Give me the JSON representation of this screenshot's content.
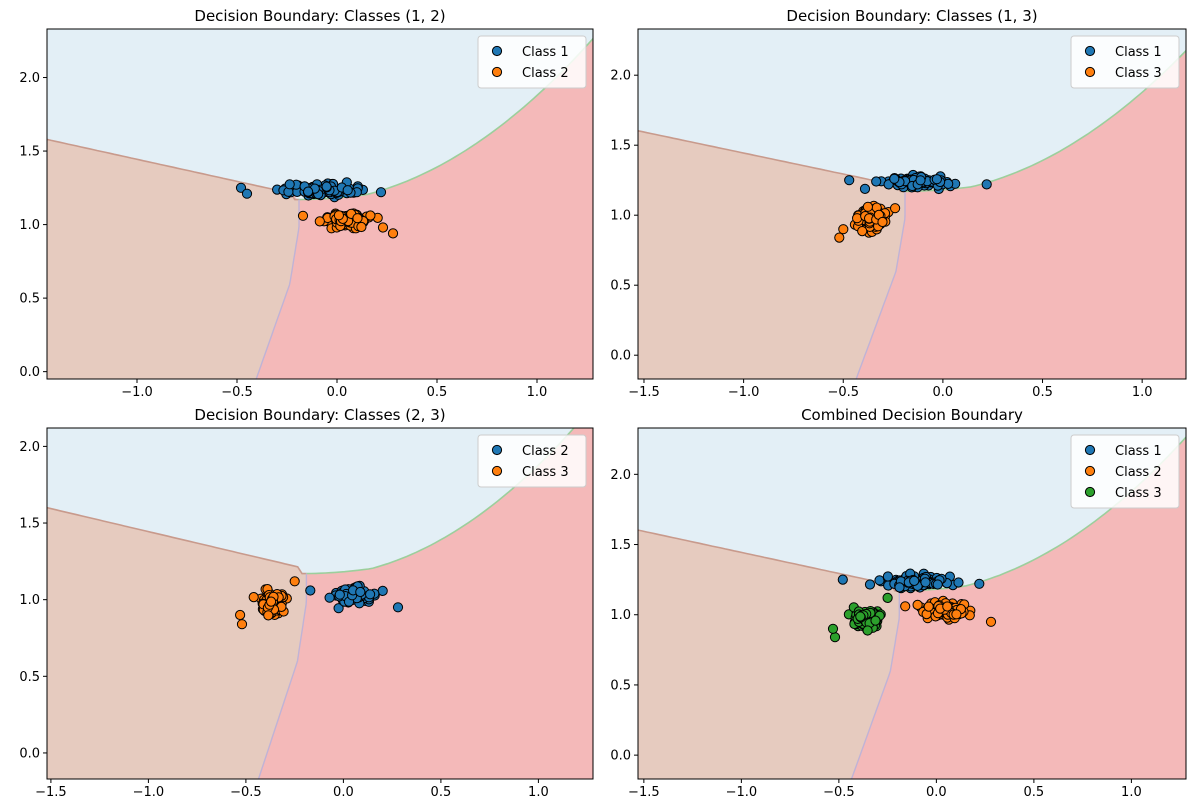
{
  "colors": {
    "class_1": "#1f77b4",
    "class_2": "#ff7f0e",
    "class_3": "#2ca02c",
    "region_top": "#e3eff6",
    "region_left": "#e6cbbf",
    "region_right": "#f4b9b9"
  },
  "chart_data": [
    {
      "type": "scatter",
      "title": "Decision Boundary: Classes (1, 2)",
      "xlabel": "",
      "ylabel": "",
      "xlim": [
        -1.45,
        1.28
      ],
      "ylim": [
        -0.05,
        2.33
      ],
      "xticks": [
        -1.0,
        -0.5,
        0.0,
        0.5,
        1.0
      ],
      "xtick_labels": [
        "−1.0",
        "−0.5",
        "0.0",
        "0.5",
        "1.0"
      ],
      "yticks": [
        0.0,
        0.5,
        1.0,
        1.5,
        2.0
      ],
      "ytick_labels": [
        "0.0",
        "0.5",
        "1.0",
        "1.5",
        "2.0"
      ],
      "grid": false,
      "legend_position": "top-right",
      "background": "decision-regions",
      "series": [
        {
          "name": "Class 1",
          "color": "#1f77b4",
          "center": [
            -0.1,
            1.235
          ],
          "spread": [
            0.16,
            0.028
          ],
          "n": 120,
          "outliers": [
            [
              0.22,
              1.22
            ],
            [
              -0.48,
              1.25
            ],
            [
              -0.45,
              1.21
            ]
          ]
        },
        {
          "name": "Class 2",
          "color": "#ff7f0e",
          "center": [
            0.05,
            1.03
          ],
          "spread": [
            0.09,
            0.035
          ],
          "n": 110,
          "outliers": [
            [
              0.28,
              0.94
            ],
            [
              -0.17,
              1.06
            ],
            [
              0.23,
              0.98
            ]
          ]
        }
      ]
    },
    {
      "type": "scatter",
      "title": "Decision Boundary: Classes (1, 3)",
      "xlabel": "",
      "ylabel": "",
      "xlim": [
        -1.53,
        1.22
      ],
      "ylim": [
        -0.17,
        2.33
      ],
      "xticks": [
        -1.5,
        -1.0,
        -0.5,
        0.0,
        0.5,
        1.0
      ],
      "xtick_labels": [
        "−1.5",
        "−1.0",
        "−0.5",
        "0.0",
        "0.5",
        "1.0"
      ],
      "yticks": [
        0.0,
        0.5,
        1.0,
        1.5,
        2.0
      ],
      "ytick_labels": [
        "0.0",
        "0.5",
        "1.0",
        "1.5",
        "2.0"
      ],
      "grid": false,
      "legend_position": "top-right",
      "background": "decision-regions",
      "series": [
        {
          "name": "Class 1",
          "color": "#1f77b4",
          "center": [
            -0.14,
            1.235
          ],
          "spread": [
            0.14,
            0.025
          ],
          "n": 120,
          "outliers": [
            [
              0.22,
              1.22
            ],
            [
              -0.47,
              1.25
            ]
          ]
        },
        {
          "name": "Class 3",
          "color": "#ff7f0e",
          "center": [
            -0.36,
            0.97
          ],
          "spread": [
            0.06,
            0.05
          ],
          "n": 110,
          "outliers": [
            [
              -0.52,
              0.84
            ],
            [
              -0.5,
              0.9
            ],
            [
              -0.24,
              1.05
            ]
          ]
        }
      ]
    },
    {
      "type": "scatter",
      "title": "Decision Boundary: Classes (2, 3)",
      "xlabel": "",
      "ylabel": "",
      "xlim": [
        -1.52,
        1.28
      ],
      "ylim": [
        -0.17,
        2.12
      ],
      "xticks": [
        -1.5,
        -1.0,
        -0.5,
        0.0,
        0.5,
        1.0
      ],
      "xtick_labels": [
        "−1.5",
        "−1.0",
        "−0.5",
        "0.0",
        "0.5",
        "1.0"
      ],
      "yticks": [
        0.0,
        0.5,
        1.0,
        1.5,
        2.0
      ],
      "ytick_labels": [
        "0.0",
        "0.5",
        "1.0",
        "1.5",
        "2.0"
      ],
      "grid": false,
      "legend_position": "top-right",
      "background": "decision-regions",
      "series": [
        {
          "name": "Class 2",
          "color": "#1f77b4",
          "center": [
            0.05,
            1.03
          ],
          "spread": [
            0.09,
            0.035
          ],
          "n": 110,
          "outliers": [
            [
              0.28,
              0.95
            ],
            [
              -0.17,
              1.06
            ]
          ]
        },
        {
          "name": "Class 3",
          "color": "#ff7f0e",
          "center": [
            -0.36,
            0.97
          ],
          "spread": [
            0.06,
            0.05
          ],
          "n": 110,
          "outliers": [
            [
              -0.52,
              0.84
            ],
            [
              -0.53,
              0.9
            ],
            [
              -0.25,
              1.12
            ]
          ]
        }
      ]
    },
    {
      "type": "scatter",
      "title": "Combined Decision Boundary",
      "xlabel": "",
      "ylabel": "",
      "xlim": [
        -1.53,
        1.28
      ],
      "ylim": [
        -0.17,
        2.33
      ],
      "xticks": [
        -1.5,
        -1.0,
        -0.5,
        0.0,
        0.5,
        1.0
      ],
      "xtick_labels": [
        "−1.5",
        "−1.0",
        "−0.5",
        "0.0",
        "0.5",
        "1.0"
      ],
      "yticks": [
        0.0,
        0.5,
        1.0,
        1.5,
        2.0
      ],
      "ytick_labels": [
        "0.0",
        "0.5",
        "1.0",
        "1.5",
        "2.0"
      ],
      "grid": false,
      "legend_position": "top-right",
      "background": "decision-regions",
      "series": [
        {
          "name": "Class 1",
          "color": "#1f77b4",
          "center": [
            -0.1,
            1.235
          ],
          "spread": [
            0.16,
            0.028
          ],
          "n": 120,
          "outliers": [
            [
              0.22,
              1.22
            ],
            [
              -0.48,
              1.25
            ]
          ]
        },
        {
          "name": "Class 2",
          "color": "#ff7f0e",
          "center": [
            0.05,
            1.03
          ],
          "spread": [
            0.09,
            0.035
          ],
          "n": 110,
          "outliers": [
            [
              0.28,
              0.95
            ],
            [
              -0.16,
              1.06
            ]
          ]
        },
        {
          "name": "Class 3",
          "color": "#2ca02c",
          "center": [
            -0.36,
            0.97
          ],
          "spread": [
            0.06,
            0.05
          ],
          "n": 110,
          "outliers": [
            [
              -0.52,
              0.84
            ],
            [
              -0.53,
              0.9
            ],
            [
              -0.25,
              1.12
            ]
          ]
        }
      ]
    }
  ]
}
